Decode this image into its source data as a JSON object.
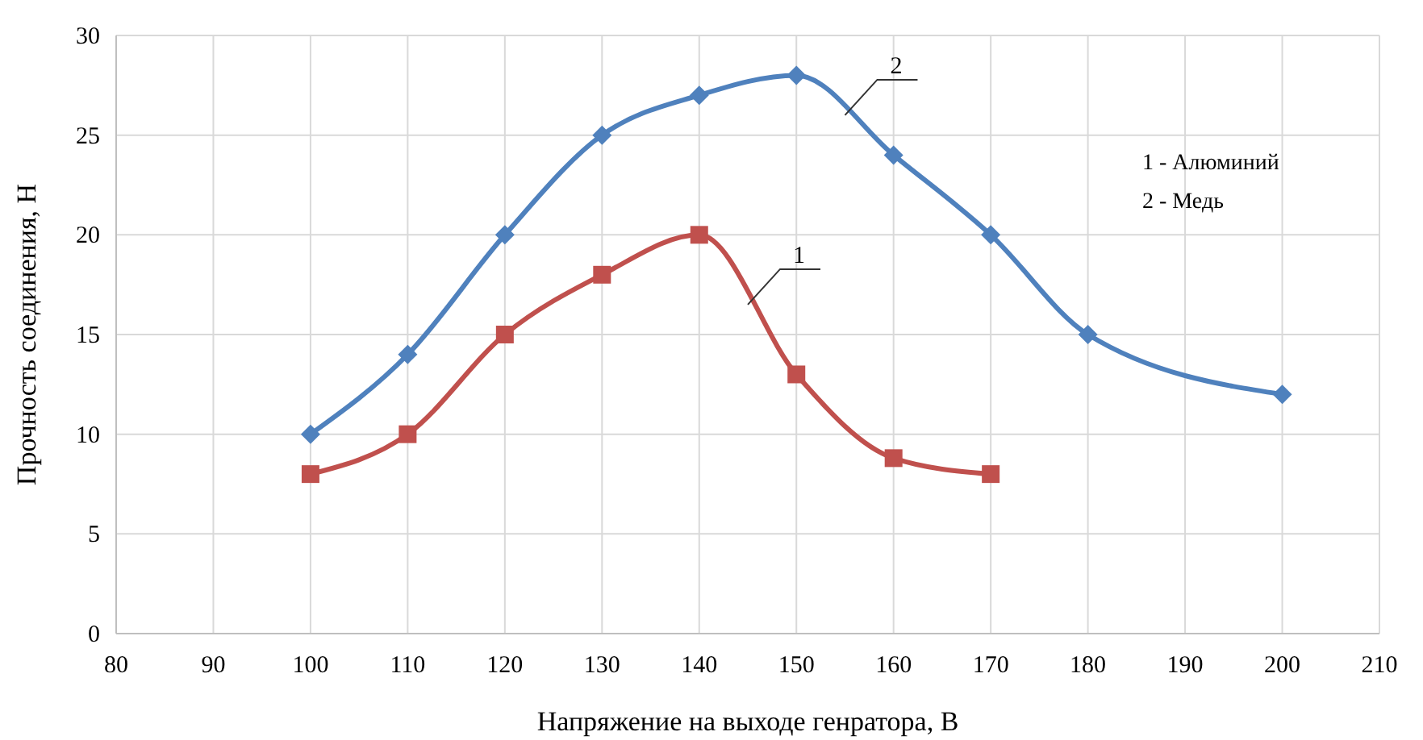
{
  "chart_data": {
    "type": "line",
    "xlabel": "Напряжение на выходе генратора, В",
    "ylabel": "Прочность соединения, Н",
    "xlim": [
      80,
      210
    ],
    "xticks": [
      80,
      90,
      100,
      110,
      120,
      130,
      140,
      150,
      160,
      170,
      180,
      190,
      200,
      210
    ],
    "ylim": [
      0,
      30
    ],
    "yticks": [
      0,
      5,
      10,
      15,
      20,
      25,
      30
    ],
    "grid": true,
    "line_style": "solid",
    "series": [
      {
        "name": "1",
        "color": "#c0504d",
        "marker": "square",
        "x": [
          100,
          110,
          120,
          130,
          140,
          150,
          160,
          170
        ],
        "values": [
          8,
          10,
          15,
          18,
          20,
          13,
          8.8,
          8
        ]
      },
      {
        "name": "2",
        "color": "#4f81bd",
        "marker": "diamond",
        "x": [
          100,
          110,
          120,
          130,
          140,
          150,
          160,
          170,
          180,
          200
        ],
        "values": [
          10,
          14,
          20,
          25,
          27,
          28,
          24,
          20,
          15,
          12
        ]
      }
    ],
    "annotations": [
      "1 - Алюминий",
      "2 - Медь"
    ]
  }
}
